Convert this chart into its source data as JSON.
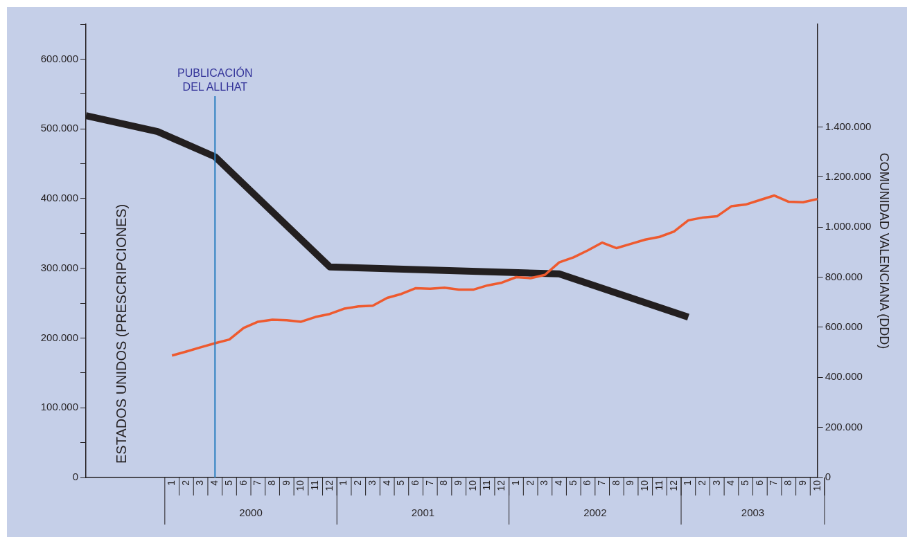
{
  "chart_data": {
    "type": "line",
    "ylabel": "ESTADOS UNIDOS (PRESCRIPCIONES)",
    "y2label": "COMUNIDAD VALENCIANA (DDD)",
    "categories": [
      null,
      null,
      null,
      null,
      null,
      null,
      "1",
      "2",
      "3",
      "4",
      "5",
      "6",
      "7",
      "8",
      "9",
      "10",
      "11",
      "12",
      "1",
      "2",
      "3",
      "4",
      "5",
      "6",
      "7",
      "8",
      "9",
      "10",
      "11",
      "12",
      "1",
      "2",
      "3",
      "4",
      "5",
      "6",
      "7",
      "8",
      "9",
      "10",
      "11",
      "12",
      "1",
      "2",
      "3",
      "4",
      "5",
      "6",
      "7",
      "8",
      "9",
      "10"
    ],
    "series": [
      {
        "color": "#231f20",
        "values": [
          519000,
          null,
          null,
          null,
          null,
          496000,
          null,
          null,
          null,
          460000,
          null,
          null,
          null,
          null,
          null,
          null,
          null,
          302000,
          null,
          null,
          null,
          null,
          null,
          null,
          null,
          null,
          null,
          null,
          null,
          null,
          null,
          null,
          null,
          292000,
          null,
          null,
          null,
          null,
          null,
          null,
          null,
          null,
          230000,
          null,
          null,
          null,
          null,
          null,
          null,
          null,
          null,
          null
        ]
      },
      {
        "color": "#ee5a2f",
        "axis": "y2",
        "values": [
          null,
          null,
          null,
          null,
          null,
          null,
          487000,
          503000,
          520000,
          536000,
          551000,
          597000,
          622000,
          630000,
          628000,
          622000,
          641000,
          653000,
          674000,
          683000,
          686000,
          717000,
          733000,
          756000,
          754000,
          758000,
          750000,
          750000,
          767000,
          778000,
          800000,
          796000,
          809000,
          859000,
          879000,
          907000,
          938000,
          916000,
          933000,
          950000,
          961000,
          982000,
          1027000,
          1038000,
          1043000,
          1083000,
          1090000,
          1108000,
          1126000,
          1101000,
          1099000,
          1112000
        ]
      }
    ],
    "ylim": [
      0,
      650000
    ],
    "yticks": [
      0,
      {
        "value": 50000,
        "label": null
      },
      {
        "value": 100000,
        "label": "100.000"
      },
      {
        "value": 150000,
        "label": null
      },
      {
        "value": 200000,
        "label": "200.000"
      },
      {
        "value": 250000,
        "label": null
      },
      {
        "value": 300000,
        "label": "300.000"
      },
      {
        "value": 350000,
        "label": null
      },
      {
        "value": 400000,
        "label": "400.000"
      },
      {
        "value": 450000,
        "label": null
      },
      {
        "value": 500000,
        "label": "500.000"
      },
      {
        "value": 550000,
        "label": null
      },
      {
        "value": 600000,
        "label": "600.000"
      },
      {
        "value": 650000,
        "label": null
      }
    ],
    "y2lim": [
      0,
      1810000
    ],
    "y2ticks": [
      0,
      {
        "value": 200000,
        "label": "200.000"
      },
      {
        "value": 400000,
        "label": "400.000"
      },
      {
        "value": 600000,
        "label": "600.000"
      },
      {
        "value": 800000,
        "label": "800.000"
      },
      {
        "value": 1000000,
        "label": "1.000.000"
      },
      {
        "value": 1200000,
        "label": "1.200.000"
      },
      {
        "value": 1400000,
        "label": "1.400.000"
      }
    ],
    "ref_lines": [
      {
        "axis": "x",
        "value": "4",
        "label": "PUBLICACIÓN DEL ALLHAT",
        "color": "#2a7fc0"
      }
    ],
    "annotations": [
      "2000",
      "2001",
      "2002",
      "2003"
    ],
    "grid": false,
    "legend": false,
    "marker": "none"
  }
}
